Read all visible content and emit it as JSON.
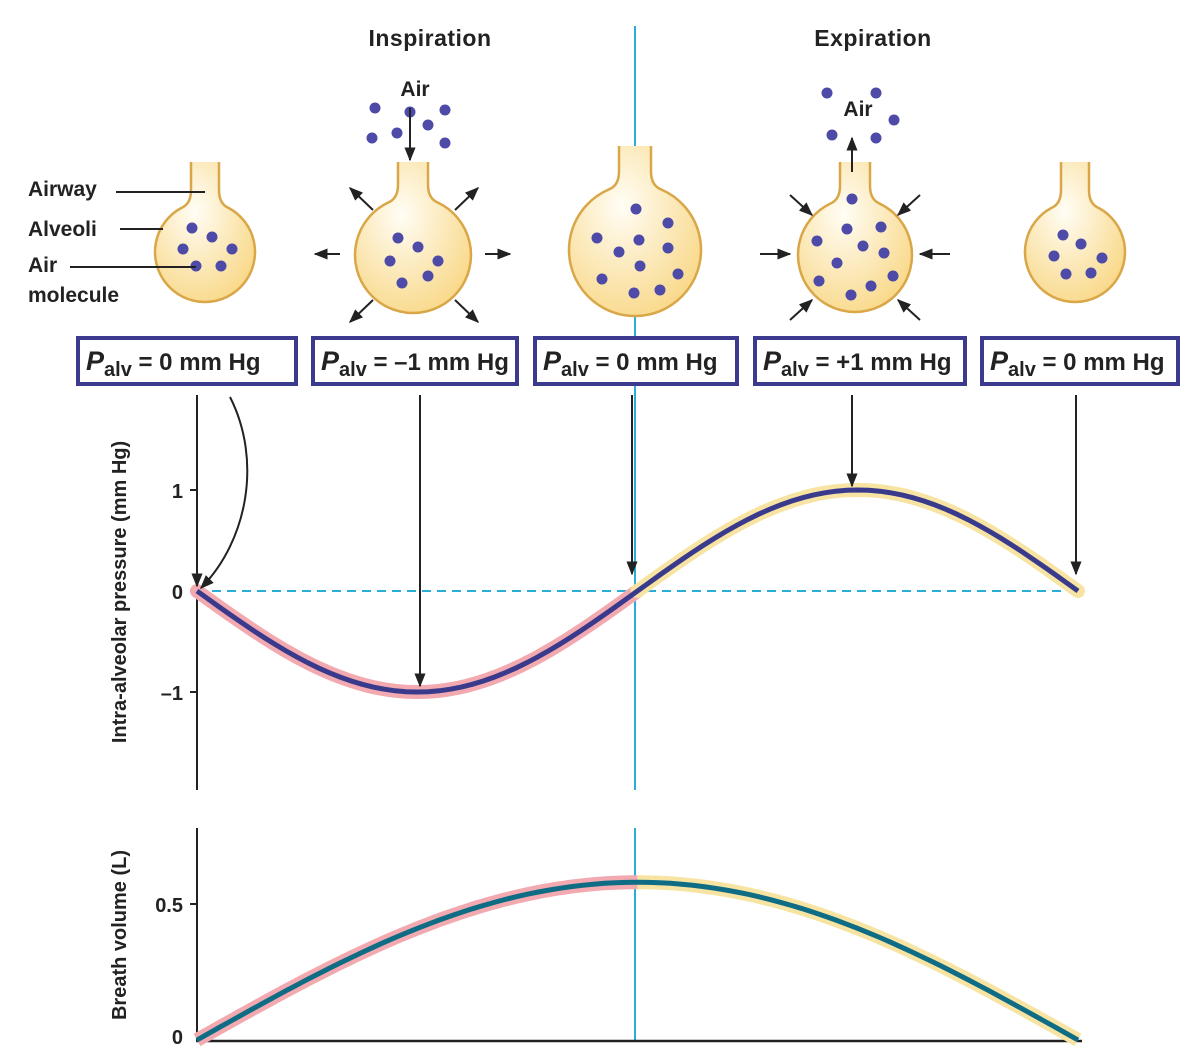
{
  "phases": {
    "inspiration": "Inspiration",
    "expiration": "Expiration"
  },
  "labels": {
    "airway": "Airway",
    "alveoli": "Alveoli",
    "air_molecule_1": "Air",
    "air_molecule_2": "molecule",
    "air_in": "Air",
    "air_out": "Air"
  },
  "pressure_boxes": [
    {
      "symbol": "P",
      "subscript": "alv",
      "value": " = 0 mm Hg"
    },
    {
      "symbol": "P",
      "subscript": "alv",
      "value": " = –1 mm Hg"
    },
    {
      "symbol": "P",
      "subscript": "alv",
      "value": " = 0 mm Hg"
    },
    {
      "symbol": "P",
      "subscript": "alv",
      "value": " = +1 mm Hg"
    },
    {
      "symbol": "P",
      "subscript": "alv",
      "value": " = 0 mm Hg"
    }
  ],
  "colors": {
    "line": "#3a3a8c",
    "volume_line": "#0e6c84",
    "inspiration_halo": "#f2aab0",
    "expiration_halo": "#f7e4a2",
    "alveolus_fill": "#fbe3a6",
    "alveolus_stroke": "#d9a648",
    "molecule": "#4d4aa8",
    "guide": "#2aaed6",
    "box_border": "#3b3a8f"
  },
  "chart_data": [
    {
      "type": "line",
      "ylabel": "Intra-alveolar pressure (mm Hg)",
      "yticks": [
        "1",
        "0",
        "–1"
      ],
      "ylim": [
        -2,
        2
      ],
      "series": [
        {
          "x": [
            0,
            0.25,
            0.5,
            0.75,
            1
          ],
          "values": [
            0,
            -1,
            0,
            1,
            0
          ]
        }
      ],
      "reference_line": 0
    },
    {
      "type": "line",
      "ylabel": "Breath volume (L)",
      "yticks": [
        "0.5",
        "0"
      ],
      "ylim": [
        0,
        0.8
      ],
      "series": [
        {
          "x": [
            0,
            0.5,
            1
          ],
          "values": [
            0,
            0.58,
            0
          ]
        }
      ]
    }
  ]
}
